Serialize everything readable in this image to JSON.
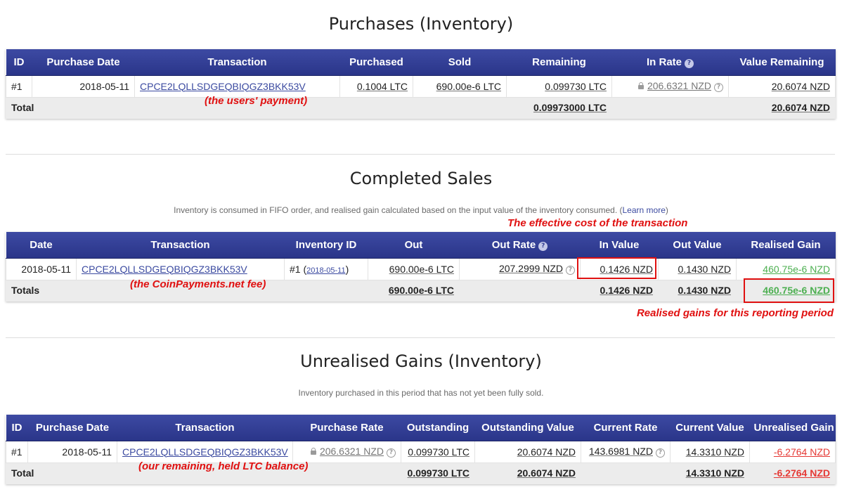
{
  "purchases": {
    "title": "Purchases (Inventory)",
    "headers": [
      "ID",
      "Purchase Date",
      "Transaction",
      "Purchased",
      "Sold",
      "Remaining",
      "In Rate",
      "Value Remaining"
    ],
    "rows": [
      {
        "id": "#1",
        "date": "2018-05-11",
        "transaction": "CPCE2LQLLSDGEQBIQGZ3BKK53V",
        "purchased": "0.1004 LTC",
        "sold": "690.00e-6 LTC",
        "remaining": "0.099730 LTC",
        "in_rate": "206.6321 NZD",
        "value_remaining": "20.6074 NZD"
      }
    ],
    "total": {
      "label": "Total",
      "remaining": "0.09973000 LTC",
      "value_remaining": "20.6074 NZD"
    }
  },
  "sales": {
    "title": "Completed Sales",
    "subtitle": "Inventory is consumed in FIFO order, and realised gain calculated based on the input value of the inventory consumed. (",
    "learn_more": "Learn more",
    "subtitle_end": ")",
    "headers": [
      "Date",
      "Transaction",
      "Inventory ID",
      "Out",
      "Out Rate",
      "In Value",
      "Out Value",
      "Realised Gain"
    ],
    "rows": [
      {
        "date": "2018-05-11",
        "transaction": "CPCE2LQLLSDGEQBIQGZ3BKK53V",
        "inventory_id": "#1",
        "inventory_date": "2018-05-11",
        "out": "690.00e-6 LTC",
        "out_rate": "207.2999 NZD",
        "in_value": "0.1426 NZD",
        "out_value": "0.1430 NZD",
        "realised_gain": "460.75e-6 NZD"
      }
    ],
    "total": {
      "label": "Totals",
      "out": "690.00e-6 LTC",
      "in_value": "0.1426 NZD",
      "out_value": "0.1430 NZD",
      "realised_gain": "460.75e-6 NZD"
    }
  },
  "unrealised": {
    "title": "Unrealised Gains (Inventory)",
    "subtitle": "Inventory purchased in this period that has not yet been fully sold.",
    "headers": [
      "ID",
      "Purchase Date",
      "Transaction",
      "Purchase Rate",
      "Outstanding",
      "Outstanding Value",
      "Current Rate",
      "Current Value",
      "Unrealised Gain"
    ],
    "rows": [
      {
        "id": "#1",
        "date": "2018-05-11",
        "transaction": "CPCE2LQLLSDGEQBIQGZ3BKK53V",
        "purchase_rate": "206.6321 NZD",
        "outstanding": "0.099730 LTC",
        "outstanding_value": "20.6074 NZD",
        "current_rate": "143.6981 NZD",
        "current_value": "14.3310 NZD",
        "unrealised_gain": "-6.2764 NZD"
      }
    ],
    "total": {
      "label": "Total",
      "outstanding": "0.099730 LTC",
      "outstanding_value": "20.6074 NZD",
      "current_value": "14.3310 NZD",
      "unrealised_gain": "-6.2764 NZD"
    }
  },
  "annotations": {
    "users_payment": "(the users' payment)",
    "effective_cost": "The effective cost of the transaction",
    "coinpayments_fee": "(the CoinPayments.net fee)",
    "realised_gains_period": "Realised gains for this reporting period",
    "remaining_balance": "(our remaining, held LTC balance)"
  },
  "icons": {
    "help": "question-circle-icon",
    "lock": "lock-icon"
  },
  "colors": {
    "header": "#2f3a8f",
    "gain": "#4caf50",
    "loss": "#e53935",
    "annotation": "#e01010",
    "link": "#3b4aa0"
  }
}
